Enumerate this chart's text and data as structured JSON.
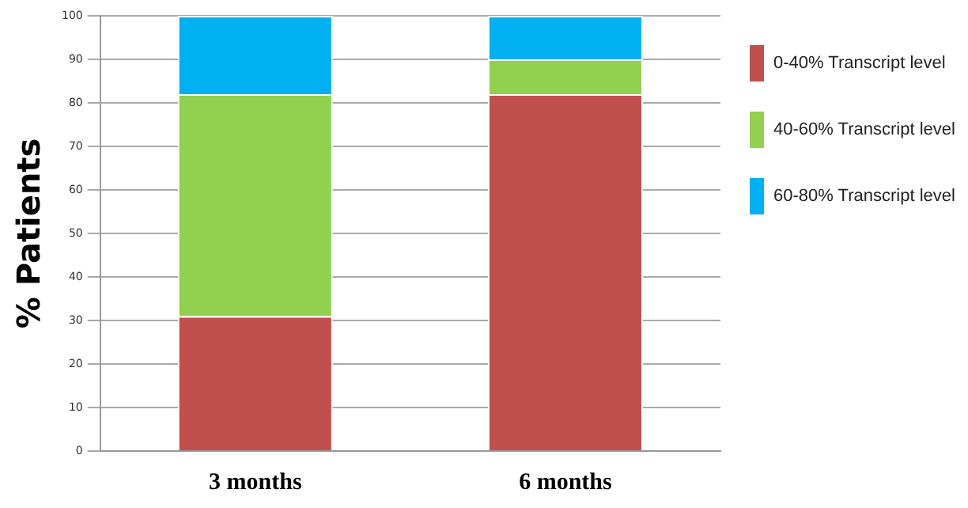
{
  "chart_data": {
    "type": "bar",
    "stacked": true,
    "ylabel": "% Patients",
    "categories": [
      "3 months",
      "6 months"
    ],
    "series": [
      {
        "name": "0-40% Transcript level",
        "color": "#c0504d",
        "values": [
          31,
          82
        ]
      },
      {
        "name": "40-60% Transcript level",
        "color": "#92d050",
        "values": [
          51,
          8
        ]
      },
      {
        "name": "60-80% Transcript level",
        "color": "#00b0f0",
        "values": [
          18,
          10
        ]
      }
    ],
    "ylim": [
      0,
      100
    ],
    "yticks": [
      0,
      10,
      20,
      30,
      40,
      50,
      60,
      70,
      80,
      90,
      100
    ],
    "grid": "y",
    "legend": "right"
  }
}
